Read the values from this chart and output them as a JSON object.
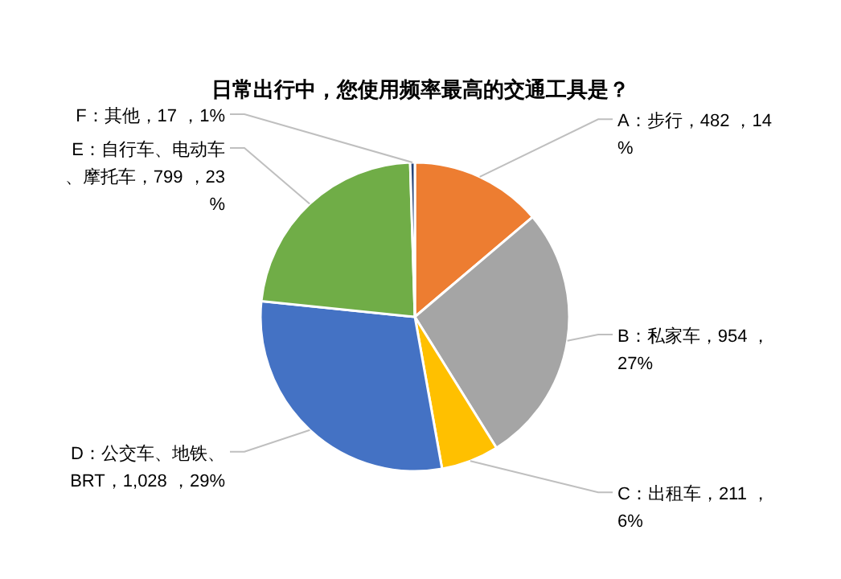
{
  "chart_data": {
    "type": "pie",
    "title": "日常出行中，您使用频率最高的交通工具是？",
    "categories": [
      "A：步行",
      "B：私家车",
      "C：出租车",
      "D：公交车、地铁、BRT",
      "E：自行车、电动车、摩托车",
      "F：其他"
    ],
    "values": [
      482,
      954,
      211,
      1028,
      799,
      17
    ],
    "value_labels": [
      "482 ，14%",
      "954 ，27%",
      "211 ，6%",
      "1,028 ，29%",
      "799 ，23%",
      "17 ，1%"
    ],
    "colors": [
      "#ed7d31",
      "#a5a5a5",
      "#ffc000",
      "#4472c4",
      "#70ad47",
      "#264478"
    ]
  }
}
